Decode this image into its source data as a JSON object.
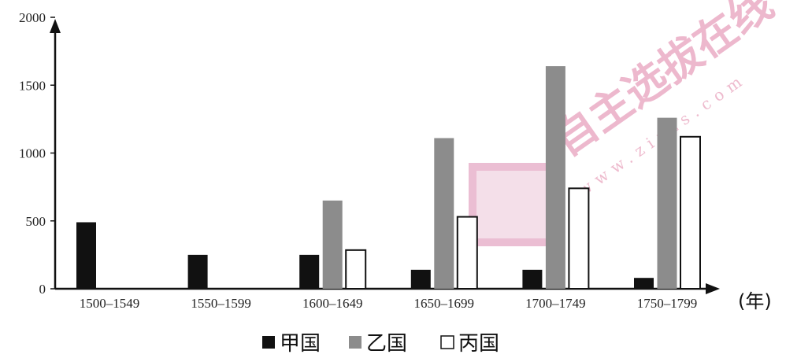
{
  "chart_data": {
    "type": "bar",
    "categories": [
      "1500–1549",
      "1550–1599",
      "1600–1649",
      "1650–1699",
      "1700–1749",
      "1750–1799"
    ],
    "x_unit_label": "(年)",
    "ylim": [
      0,
      2000
    ],
    "yticks": [
      0,
      500,
      1000,
      1500,
      2000
    ],
    "grid": false,
    "legend_position": "bottom",
    "series": [
      {
        "name": "甲国",
        "values": [
          490,
          250,
          250,
          140,
          140,
          80
        ],
        "color": "#111111",
        "style": "solid"
      },
      {
        "name": "乙国",
        "values": [
          0,
          0,
          650,
          1110,
          1640,
          1260
        ],
        "color": "#8c8c8c",
        "style": "solid"
      },
      {
        "name": "丙国",
        "values": [
          0,
          0,
          285,
          530,
          740,
          1120
        ],
        "color": "#ffffff",
        "style": "outline"
      }
    ]
  },
  "watermark": {
    "url_text": "www.zizzs.com",
    "cn_text": "自主选拔在线"
  }
}
